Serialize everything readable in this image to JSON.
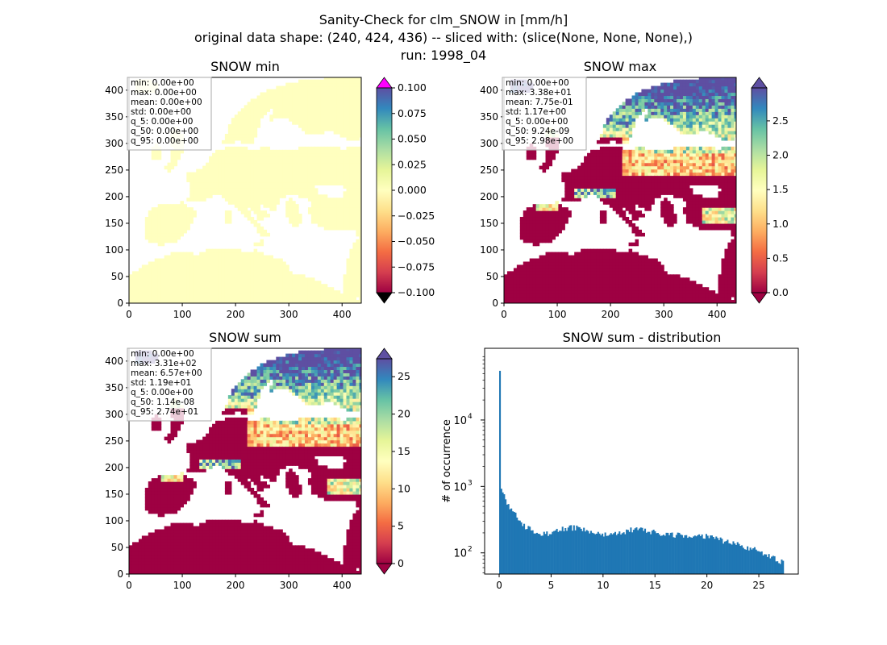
{
  "suptitle": [
    "Sanity-Check for clm_SNOW in [mm/h]",
    "original data shape: (240, 424, 436) -- sliced with: (slice(None, None, None),)",
    "run: 1998_04"
  ],
  "colors": {
    "spectral": [
      "#9e0142",
      "#d53e4f",
      "#f46d43",
      "#fdae61",
      "#fee08b",
      "#ffffbf",
      "#e6f598",
      "#abdda4",
      "#66c2a5",
      "#3288bd",
      "#5e4fa2"
    ],
    "under": "#000000",
    "over_min": "#ff00ff",
    "bar": "#1f77b4"
  },
  "chart_data": [
    {
      "type": "heatmap",
      "title": "SNOW min",
      "xlim": [
        0,
        436
      ],
      "ylim": [
        0,
        424
      ],
      "xticks": [
        "0",
        "100",
        "200",
        "300",
        "400"
      ],
      "yticks": [
        "0",
        "50",
        "100",
        "150",
        "200",
        "250",
        "300",
        "350",
        "400"
      ],
      "colorbar": {
        "min": -0.1,
        "max": 0.1,
        "ticks": [
          "−0.100",
          "−0.075",
          "−0.050",
          "−0.025",
          "0.000",
          "0.025",
          "0.050",
          "0.075",
          "0.100"
        ],
        "over_color": "#ff00ff",
        "under_color": "#000000"
      },
      "stats": [
        "min: 0.00e+00",
        "max: 0.00e+00",
        "mean: 0.00e+00",
        "std: 0.00e+00",
        "q_5: 0.00e+00",
        "q_50: 0.00e+00",
        "q_95: 0.00e+00"
      ],
      "field": "uniform"
    },
    {
      "type": "heatmap",
      "title": "SNOW max",
      "xlim": [
        0,
        436
      ],
      "ylim": [
        0,
        424
      ],
      "xticks": [
        "0",
        "100",
        "200",
        "300",
        "400"
      ],
      "yticks": [
        "0",
        "50",
        "100",
        "150",
        "200",
        "250",
        "300",
        "350",
        "400"
      ],
      "colorbar": {
        "min": 0.0,
        "max": 2.98,
        "ticks": [
          "0.0",
          "0.5",
          "1.0",
          "1.5",
          "2.0",
          "2.5"
        ],
        "tick_values": [
          0,
          0.5,
          1.0,
          1.5,
          2.0,
          2.5
        ]
      },
      "stats": [
        "min: 0.00e+00",
        "max: 3.38e+01",
        "mean: 7.75e-01",
        "std: 1.17e+00",
        "q_5: 0.00e+00",
        "q_50: 9.24e-09",
        "q_95: 2.98e+00"
      ],
      "field": "snow"
    },
    {
      "type": "heatmap",
      "title": "SNOW sum",
      "xlim": [
        0,
        436
      ],
      "ylim": [
        0,
        424
      ],
      "xticks": [
        "0",
        "100",
        "200",
        "300",
        "400"
      ],
      "yticks": [
        "0",
        "50",
        "100",
        "150",
        "200",
        "250",
        "300",
        "350",
        "400"
      ],
      "colorbar": {
        "min": 0.0,
        "max": 27.4,
        "ticks": [
          "0",
          "5",
          "10",
          "15",
          "20",
          "25"
        ],
        "tick_values": [
          0,
          5,
          10,
          15,
          20,
          25
        ]
      },
      "stats": [
        "min: 0.00e+00",
        "max: 3.31e+02",
        "mean: 6.57e+00",
        "std: 1.19e+01",
        "q_5: 0.00e+00",
        "q_50: 1.14e-08",
        "q_95: 2.74e+01"
      ],
      "field": "snow"
    },
    {
      "type": "bar",
      "title": "SNOW sum - distribution",
      "xlabel": "",
      "ylabel": "# of occurrence",
      "yscale": "log",
      "xlim": [
        -1.4,
        28.8
      ],
      "ylim": [
        48,
        120000
      ],
      "xticks": [
        "0",
        "5",
        "10",
        "15",
        "20",
        "25"
      ],
      "xtick_values": [
        0,
        5,
        10,
        15,
        20,
        25
      ],
      "yticks": [
        "10",
        "10",
        "10"
      ],
      "ytick_exponents": [
        "2",
        "3",
        "4"
      ],
      "ytick_values": [
        100,
        1000,
        10000
      ],
      "bin_start": 0.0,
      "bin_width": 0.137,
      "bins": 200,
      "profile": [
        [
          0.0,
          55000
        ],
        [
          0.14,
          1000
        ],
        [
          0.3,
          850
        ],
        [
          0.6,
          650
        ],
        [
          1.0,
          500
        ],
        [
          1.5,
          380
        ],
        [
          2.0,
          300
        ],
        [
          2.5,
          250
        ],
        [
          3.0,
          225
        ],
        [
          3.5,
          210
        ],
        [
          4.0,
          200
        ],
        [
          4.5,
          195
        ],
        [
          5.0,
          200
        ],
        [
          5.5,
          215
        ],
        [
          6.0,
          225
        ],
        [
          6.5,
          235
        ],
        [
          7.0,
          240
        ],
        [
          7.5,
          235
        ],
        [
          8.0,
          225
        ],
        [
          8.5,
          210
        ],
        [
          9.0,
          200
        ],
        [
          10.0,
          190
        ],
        [
          11.0,
          195
        ],
        [
          12.0,
          210
        ],
        [
          13.0,
          225
        ],
        [
          13.5,
          230
        ],
        [
          14.0,
          222
        ],
        [
          15.0,
          205
        ],
        [
          16.0,
          195
        ],
        [
          17.0,
          185
        ],
        [
          18.0,
          180
        ],
        [
          19.0,
          180
        ],
        [
          20.0,
          175
        ],
        [
          21.0,
          160
        ],
        [
          22.0,
          145
        ],
        [
          23.0,
          135
        ],
        [
          24.0,
          120
        ],
        [
          25.0,
          105
        ],
        [
          26.0,
          90
        ],
        [
          27.0,
          75
        ],
        [
          27.4,
          70
        ]
      ]
    }
  ]
}
